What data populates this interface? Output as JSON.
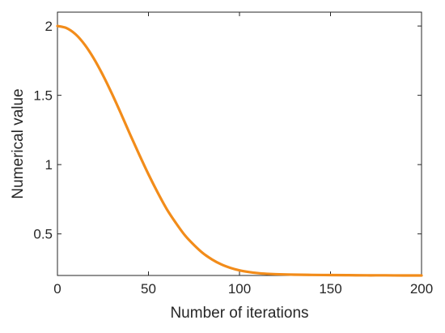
{
  "chart_data": {
    "type": "line",
    "title": "",
    "xlabel": "Number of iterations",
    "ylabel": "Numerical value",
    "xlim": [
      0,
      200
    ],
    "ylim": [
      0.2,
      2.1
    ],
    "xticks": [
      0,
      50,
      100,
      150,
      200
    ],
    "yticks": [
      0.5,
      1,
      1.5,
      2
    ],
    "xtick_labels": [
      "0",
      "50",
      "100",
      "150",
      "200"
    ],
    "ytick_labels": [
      "0.5",
      "1",
      "1.5",
      "2"
    ],
    "grid": false,
    "box": true,
    "series": [
      {
        "color": "#f28c1a",
        "x": [
          0,
          5,
          10,
          15,
          20,
          25,
          30,
          35,
          40,
          45,
          50,
          55,
          60,
          65,
          70,
          75,
          80,
          85,
          90,
          95,
          100,
          105,
          110,
          115,
          120,
          130,
          140,
          150,
          160,
          170,
          180,
          190,
          200
        ],
        "y": [
          2.0,
          1.985,
          1.94,
          1.865,
          1.765,
          1.645,
          1.51,
          1.365,
          1.215,
          1.07,
          0.93,
          0.8,
          0.68,
          0.58,
          0.49,
          0.42,
          0.36,
          0.315,
          0.28,
          0.255,
          0.237,
          0.225,
          0.217,
          0.212,
          0.209,
          0.206,
          0.204,
          0.203,
          0.202,
          0.201,
          0.201,
          0.2,
          0.2
        ]
      }
    ]
  }
}
